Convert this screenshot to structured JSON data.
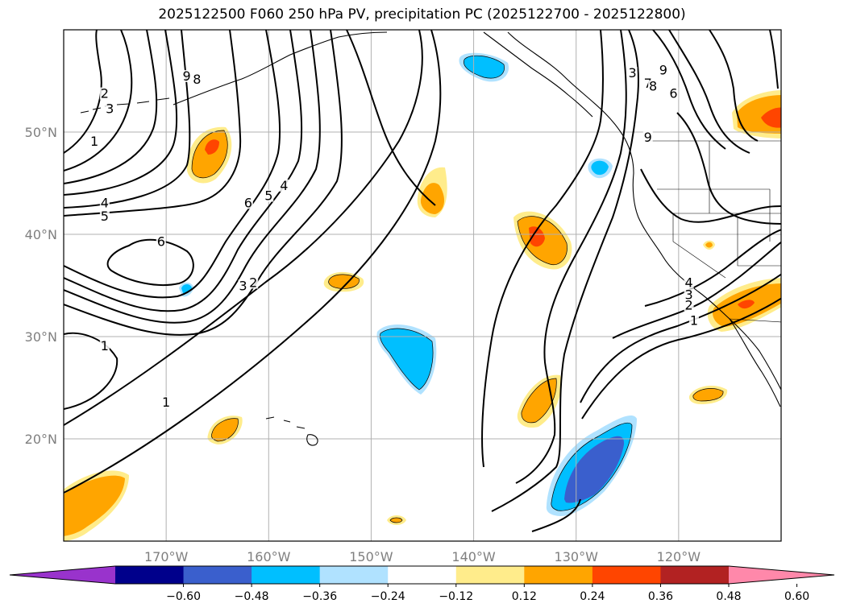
{
  "title": "2025122500 F060 250 hPa PV, precipitation PC (2025122700 - 2025122800)",
  "map": {
    "lon_range": [
      -180,
      -110
    ],
    "lat_range": [
      10,
      60
    ],
    "lat_ticks": [
      {
        "value": 50,
        "label": "50°N"
      },
      {
        "value": 40,
        "label": "40°N"
      },
      {
        "value": 30,
        "label": "30°N"
      },
      {
        "value": 20,
        "label": "20°N"
      }
    ],
    "lon_ticks": [
      {
        "value": -170,
        "label": "170°W"
      },
      {
        "value": -160,
        "label": "160°W"
      },
      {
        "value": -150,
        "label": "150°W"
      },
      {
        "value": -140,
        "label": "140°W"
      },
      {
        "value": -130,
        "label": "130°W"
      },
      {
        "value": -120,
        "label": "120°W"
      }
    ],
    "gridlines": true,
    "contour_labels": [
      {
        "text": "9",
        "lon": -168.0,
        "lat": 55.2
      },
      {
        "text": "8",
        "lon": -167.0,
        "lat": 54.9
      },
      {
        "text": "2",
        "lon": -176.0,
        "lat": 53.5
      },
      {
        "text": "3",
        "lon": -175.5,
        "lat": 52.0
      },
      {
        "text": "1",
        "lon": -177.0,
        "lat": 48.8
      },
      {
        "text": "4",
        "lon": -176.0,
        "lat": 42.8
      },
      {
        "text": "5",
        "lon": -176.0,
        "lat": 41.5
      },
      {
        "text": "6",
        "lon": -162.0,
        "lat": 42.8
      },
      {
        "text": "5",
        "lon": -160.0,
        "lat": 43.5
      },
      {
        "text": "4",
        "lon": -158.5,
        "lat": 44.5
      },
      {
        "text": "6",
        "lon": -170.5,
        "lat": 39.0
      },
      {
        "text": "3",
        "lon": -162.5,
        "lat": 34.7
      },
      {
        "text": "2",
        "lon": -161.5,
        "lat": 35.0
      },
      {
        "text": "1",
        "lon": -176.0,
        "lat": 28.8
      },
      {
        "text": "1",
        "lon": -170.0,
        "lat": 23.3
      },
      {
        "text": "3",
        "lon": -124.5,
        "lat": 55.5
      },
      {
        "text": "7",
        "lon": -123.0,
        "lat": 54.5
      },
      {
        "text": "8",
        "lon": -122.5,
        "lat": 54.2
      },
      {
        "text": "9",
        "lon": -121.5,
        "lat": 55.8
      },
      {
        "text": "6",
        "lon": -120.5,
        "lat": 53.5
      },
      {
        "text": "9",
        "lon": -123.0,
        "lat": 49.2
      },
      {
        "text": "4",
        "lon": -119.0,
        "lat": 35.0
      },
      {
        "text": "3",
        "lon": -119.0,
        "lat": 33.8
      },
      {
        "text": "2",
        "lon": -119.0,
        "lat": 32.8
      },
      {
        "text": "1",
        "lon": -118.5,
        "lat": 31.3
      }
    ]
  },
  "colorbar": {
    "colors": [
      "#9933cc",
      "#00008b",
      "#3a5fcd",
      "#00bfff",
      "#b0e2ff",
      "#ffffff",
      "#ffec8b",
      "#ffa500",
      "#ff4500",
      "#b22222",
      "#ff88aa"
    ],
    "tick_labels": [
      "−0.60",
      "−0.48",
      "−0.36",
      "−0.24",
      "−0.12",
      "0.12",
      "0.24",
      "0.36",
      "0.48",
      "0.60"
    ]
  }
}
